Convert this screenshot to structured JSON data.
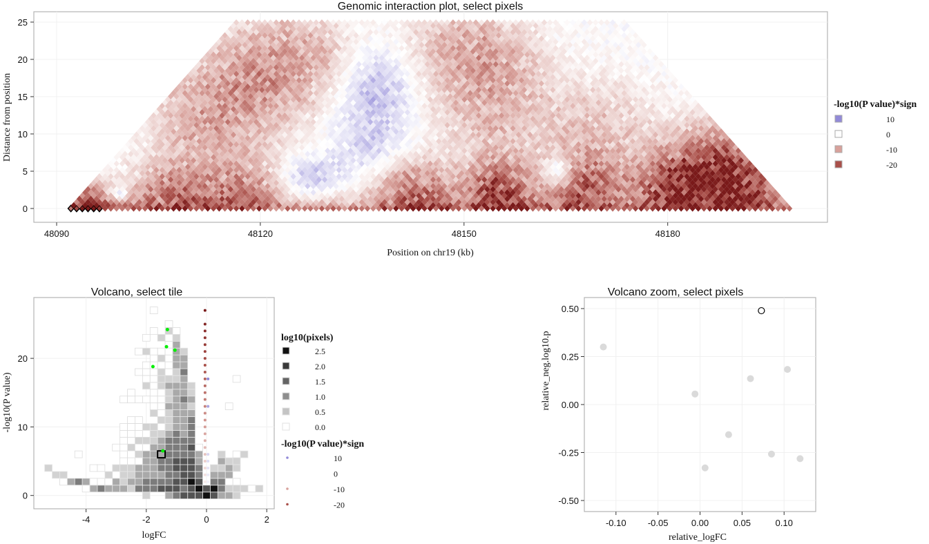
{
  "colors": {
    "pos_max": "#5b4fc4",
    "neg_10": "#d8a19b",
    "neg_20": "#a9504a",
    "neg_max": "#7a1a1a",
    "green": "#00ee00"
  },
  "chart_data": [
    {
      "id": "genomic",
      "type": "heatmap",
      "title": "Genomic interaction plot, select pixels",
      "xlabel": "Position on chr19 (kb)",
      "ylabel": "Distance from position",
      "xticks": [
        48090,
        48120,
        48150,
        48180
      ],
      "xtick_labels": [
        "48090",
        "48120",
        "48150",
        "48180"
      ],
      "yticks": [
        0,
        5,
        10,
        15,
        20,
        25
      ],
      "ytick_labels": [
        "0",
        "5",
        "10",
        "15",
        "20",
        "25"
      ],
      "xlim": [
        48085,
        48203
      ],
      "ylim": [
        -1.8,
        26.4
      ],
      "bins": {
        "first_kb": 48092.1,
        "bin_kb": 0.84,
        "n_bins": 127,
        "distance_per_row": 0.43,
        "max_distance": 25
      },
      "selected_bins_at_distance_0": [
        0,
        1,
        2,
        3,
        4,
        5
      ],
      "value_field": [
        {
          "pos": 48094,
          "dist": 1,
          "value": -16,
          "spread_kb": 3,
          "spread_dist": 2
        },
        {
          "pos": 48099,
          "dist": 2,
          "value": 9,
          "spread_kb": 1,
          "spread_dist": 0.8
        },
        {
          "pos": 48107,
          "dist": 2,
          "value": -12,
          "spread_kb": 4,
          "spread_dist": 3
        },
        {
          "pos": 48117,
          "dist": 2,
          "value": -12,
          "spread_kb": 4,
          "spread_dist": 3
        },
        {
          "pos": 48112,
          "dist": 12,
          "value": -8,
          "spread_kb": 6,
          "spread_dist": 5
        },
        {
          "pos": 48120,
          "dist": 17,
          "value": -8,
          "spread_kb": 6,
          "spread_dist": 5
        },
        {
          "pos": 48126,
          "dist": 21,
          "value": -6,
          "spread_kb": 6,
          "spread_dist": 4
        },
        {
          "pos": 48127,
          "dist": 4,
          "value": 5,
          "spread_kb": 3,
          "spread_dist": 2
        },
        {
          "pos": 48137,
          "dist": 16,
          "value": 6,
          "spread_kb": 4,
          "spread_dist": 4
        },
        {
          "pos": 48136,
          "dist": 8,
          "value": 3,
          "spread_kb": 4,
          "spread_dist": 3
        },
        {
          "pos": 48143,
          "dist": 2,
          "value": -14,
          "spread_kb": 4,
          "spread_dist": 3
        },
        {
          "pos": 48155,
          "dist": 2,
          "value": -20,
          "spread_kb": 3,
          "spread_dist": 3
        },
        {
          "pos": 48154,
          "dist": 15,
          "value": -8,
          "spread_kb": 6,
          "spread_dist": 6
        },
        {
          "pos": 48150,
          "dist": 22,
          "value": -6,
          "spread_kb": 6,
          "spread_dist": 4
        },
        {
          "pos": 48164,
          "dist": 5,
          "value": 12,
          "spread_kb": 1.5,
          "spread_dist": 1.5
        },
        {
          "pos": 48167,
          "dist": 3,
          "value": -14,
          "spread_kb": 4,
          "spread_dist": 3
        },
        {
          "pos": 48170,
          "dist": 10,
          "value": -6,
          "spread_kb": 6,
          "spread_dist": 5
        },
        {
          "pos": 48182,
          "dist": 3,
          "value": -20,
          "spread_kb": 5,
          "spread_dist": 3
        },
        {
          "pos": 48188,
          "dist": 6,
          "value": -15,
          "spread_kb": 5,
          "spread_dist": 4
        },
        {
          "pos": 48192,
          "dist": 2,
          "value": -12,
          "spread_kb": 4,
          "spread_dist": 3
        }
      ],
      "diagonal_value": -13,
      "legend": {
        "title": "-log10(P value)*sign",
        "values": [
          10,
          0,
          -10,
          -20
        ],
        "labels": [
          "10",
          "0",
          "-10",
          "-20"
        ],
        "placement": "right"
      }
    },
    {
      "id": "volcano",
      "type": "heatmap",
      "title": "Volcano, select tile",
      "xlabel": "logFC",
      "ylabel": "-log10(P value)",
      "xticks": [
        -4,
        -2,
        0,
        2
      ],
      "xtick_labels": [
        "-4",
        "-2",
        "0",
        "2"
      ],
      "yticks": [
        0,
        10,
        20
      ],
      "ytick_labels": [
        "0",
        "10",
        "20"
      ],
      "xlim": [
        -5.6,
        2.2
      ],
      "ylim": [
        -2,
        28.8
      ],
      "tile_grid": {
        "x_start": -5.25,
        "x_step": 0.25,
        "y_start": 0,
        "y_step": 1,
        "level_values": {
          "1": 0.0,
          "2": 0.5,
          "3": 1.0,
          "4": 1.5,
          "5": 2.0,
          "6": 2.5
        },
        "rows": [
          ".............2..3455565332...",
          ".....134333244455545656422212",
          "..1343111323344445565.4411...",
          ".22.....2122333344554.333....",
          "2.....11.222333445554.2232...",
          "..........11133445553..322...",
          "....1.....11233344443..2.12..",
          ".........1.2113344451........",
          "..........1122234444.........",
          "..........1111223434.........",
          "..........1112212334.........",
          "...........11..22334.........",
          "..............212333.........",
          "..............113332....1....",
          "..........1111112343.........",
          "...........1..112332.........",
          ".............2123332.........",
          ".............112223......1...",
          "............1112124..........",
          ".............111133..........",
          "..............12133..........",
          "............1211132..........",
          "................13...........",
          ".............1.212...........",
          "..............1.21...........",
          "................1............",
          ".............................",
          "..............1.............."
        ],
        "selected_tile": {
          "logFC": -1.5,
          "neg_log10_p": 6
        }
      },
      "highlight_points": [
        {
          "logFC": -1.3,
          "neg_log10_p": 24.2
        },
        {
          "logFC": -1.33,
          "neg_log10_p": 21.7
        },
        {
          "logFC": -1.05,
          "neg_log10_p": 21.2
        },
        {
          "logFC": -1.78,
          "neg_log10_p": 18.8
        },
        {
          "logFC": -1.45,
          "neg_log10_p": 6.5
        }
      ],
      "pixel_points": {
        "neg": {
          "logFC": -0.05,
          "neg_log10_p": [
            27,
            25,
            24,
            23,
            22,
            21,
            20,
            19,
            18,
            17,
            16,
            15,
            14,
            13,
            12,
            11,
            10,
            9,
            8,
            7,
            6,
            5,
            4,
            3,
            2
          ]
        },
        "pos": {
          "logFC": 0.05,
          "neg_log10_p": [
            17,
            13,
            6,
            5,
            4,
            3,
            2
          ]
        }
      },
      "legend_tiles": {
        "title": "log10(pixels)",
        "values": [
          2.5,
          2.0,
          1.5,
          1.0,
          0.5,
          0.0
        ],
        "labels": [
          "2.5",
          "2.0",
          "1.5",
          "1.0",
          "0.5",
          "0.0"
        ]
      },
      "legend_points": {
        "title": "-log10(P value)*sign",
        "values": [
          10,
          0,
          -10,
          -20
        ],
        "labels": [
          "10",
          "0",
          "-10",
          "-20"
        ]
      }
    },
    {
      "id": "zoom",
      "type": "scatter",
      "title": "Volcano zoom, select pixels",
      "xlabel": "relative_logFC",
      "ylabel": "relative_neg.log10.p",
      "xticks": [
        -0.1,
        -0.05,
        0.0,
        0.05,
        0.1
      ],
      "xtick_labels": [
        "-0.10",
        "-0.05",
        "0.00",
        "0.05",
        "0.10"
      ],
      "yticks": [
        0.5,
        0.25,
        0.0,
        -0.25,
        -0.5
      ],
      "ytick_labels": [
        "0.50",
        "0.25",
        "0.00",
        "-0.25",
        "-0.50"
      ],
      "xlim": [
        -0.138,
        0.138
      ],
      "ylim": [
        -0.55,
        0.55
      ],
      "points": [
        {
          "x": -0.115,
          "y": 0.3
        },
        {
          "x": -0.006,
          "y": 0.055
        },
        {
          "x": 0.06,
          "y": 0.135
        },
        {
          "x": 0.104,
          "y": 0.183
        },
        {
          "x": 0.034,
          "y": -0.157
        },
        {
          "x": 0.085,
          "y": -0.258
        },
        {
          "x": 0.119,
          "y": -0.282
        },
        {
          "x": 0.006,
          "y": -0.33
        }
      ],
      "selected_point": {
        "x": 0.073,
        "y": 0.489
      }
    }
  ]
}
